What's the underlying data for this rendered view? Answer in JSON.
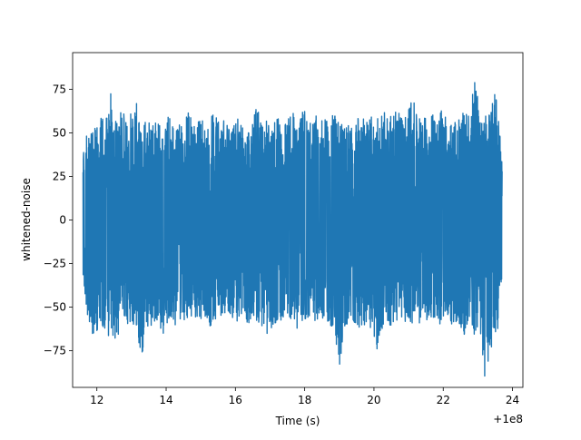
{
  "chart_data": {
    "type": "line",
    "title": "",
    "xlabel": "Time (s)",
    "ylabel": "whitened-noise",
    "x_offset_label": "+1e8",
    "xlim": [
      11.3,
      24.3
    ],
    "ylim": [
      -96,
      96
    ],
    "x_ticks": [
      12,
      14,
      16,
      18,
      20,
      22,
      24
    ],
    "x_tick_labels": [
      "12",
      "14",
      "16",
      "18",
      "20",
      "22",
      "24"
    ],
    "y_ticks": [
      -75,
      -50,
      -25,
      0,
      25,
      50,
      75
    ],
    "y_tick_labels": [
      "−75",
      "−50",
      "−25",
      "0",
      "25",
      "50",
      "75"
    ],
    "grid": false,
    "series": [
      {
        "color": "#1f77b4",
        "x_range": [
          11.6,
          23.7
        ],
        "envelope": {
          "x": [
            11.6,
            11.65,
            11.75,
            11.85,
            11.95,
            12.05,
            12.15,
            12.25,
            12.4,
            12.55,
            12.7,
            12.85,
            13.0,
            13.15,
            13.3,
            13.45,
            13.6,
            13.75,
            13.9,
            14.05,
            14.2,
            14.35,
            14.5,
            14.65,
            14.8,
            14.95,
            15.1,
            15.25,
            15.4,
            15.55,
            15.7,
            15.85,
            16.0,
            16.15,
            16.3,
            16.45,
            16.6,
            16.75,
            16.9,
            17.05,
            17.2,
            17.35,
            17.5,
            17.65,
            17.8,
            17.95,
            18.1,
            18.25,
            18.4,
            18.55,
            18.7,
            18.85,
            19.0,
            19.15,
            19.3,
            19.45,
            19.6,
            19.75,
            19.9,
            20.05,
            20.2,
            20.35,
            20.5,
            20.65,
            20.8,
            20.95,
            21.1,
            21.25,
            21.4,
            21.55,
            21.7,
            21.85,
            22.0,
            22.15,
            22.3,
            22.45,
            22.6,
            22.75,
            22.9,
            23.05,
            23.2,
            23.35,
            23.45,
            23.55,
            23.65,
            23.7
          ],
          "max": [
            38,
            48,
            55,
            52,
            58,
            50,
            62,
            56,
            73,
            58,
            64,
            60,
            62,
            68,
            58,
            60,
            56,
            57,
            53,
            60,
            59,
            55,
            56,
            62,
            56,
            62,
            60,
            57,
            63,
            56,
            58,
            52,
            63,
            55,
            58,
            50,
            66,
            56,
            58,
            52,
            62,
            56,
            58,
            63,
            56,
            64,
            60,
            63,
            57,
            59,
            62,
            63,
            58,
            55,
            54,
            60,
            58,
            58,
            63,
            57,
            62,
            64,
            62,
            62,
            63,
            60,
            73,
            58,
            62,
            56,
            64,
            60,
            66,
            52,
            66,
            60,
            66,
            60,
            82,
            63,
            66,
            60,
            86,
            66,
            48,
            32
          ],
          "min": [
            -30,
            -46,
            -58,
            -62,
            -75,
            -58,
            -62,
            -68,
            -66,
            -72,
            -62,
            -60,
            -58,
            -74,
            -80,
            -64,
            -62,
            -60,
            -67,
            -62,
            -62,
            -60,
            -58,
            -62,
            -57,
            -60,
            -58,
            -62,
            -58,
            -56,
            -56,
            -60,
            -58,
            -58,
            -64,
            -56,
            -58,
            -62,
            -66,
            -62,
            -58,
            -62,
            -58,
            -58,
            -64,
            -58,
            -57,
            -60,
            -56,
            -58,
            -60,
            -62,
            -86,
            -64,
            -58,
            -60,
            -62,
            -60,
            -62,
            -78,
            -64,
            -60,
            -66,
            -58,
            -58,
            -62,
            -60,
            -64,
            -66,
            -66,
            -58,
            -60,
            -60,
            -57,
            -62,
            -62,
            -66,
            -57,
            -68,
            -62,
            -90,
            -76,
            -74,
            -66,
            -52,
            -30
          ]
        }
      }
    ]
  }
}
